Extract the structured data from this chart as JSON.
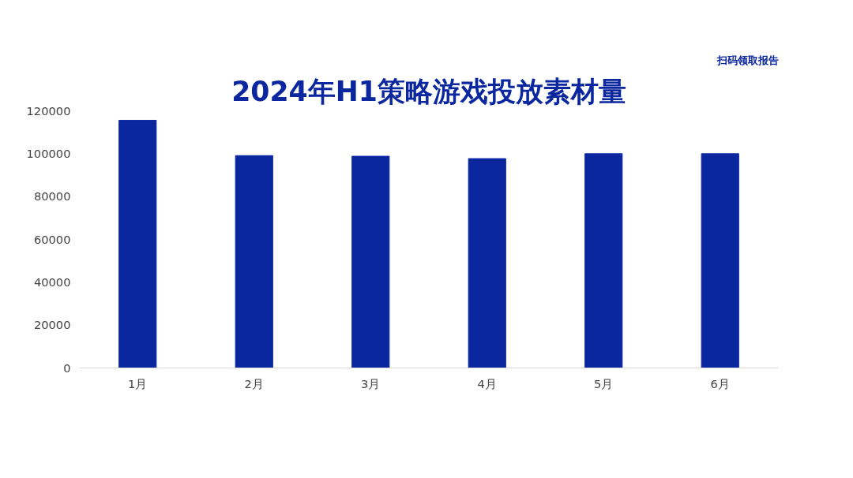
{
  "chart_data": {
    "type": "bar",
    "title": "2024年H1策略游戏投放素材量",
    "categories": [
      "1月",
      "2月",
      "3月",
      "4月",
      "5月",
      "6月"
    ],
    "values": [
      115600,
      99100,
      98800,
      97700,
      100000,
      100000
    ],
    "color": "#0b27a0",
    "ylim": [
      0,
      120000
    ],
    "yticks": [
      0,
      20000,
      40000,
      60000,
      80000,
      100000,
      120000
    ],
    "grid": false,
    "annotations": [
      "扫码领取报告"
    ]
  }
}
